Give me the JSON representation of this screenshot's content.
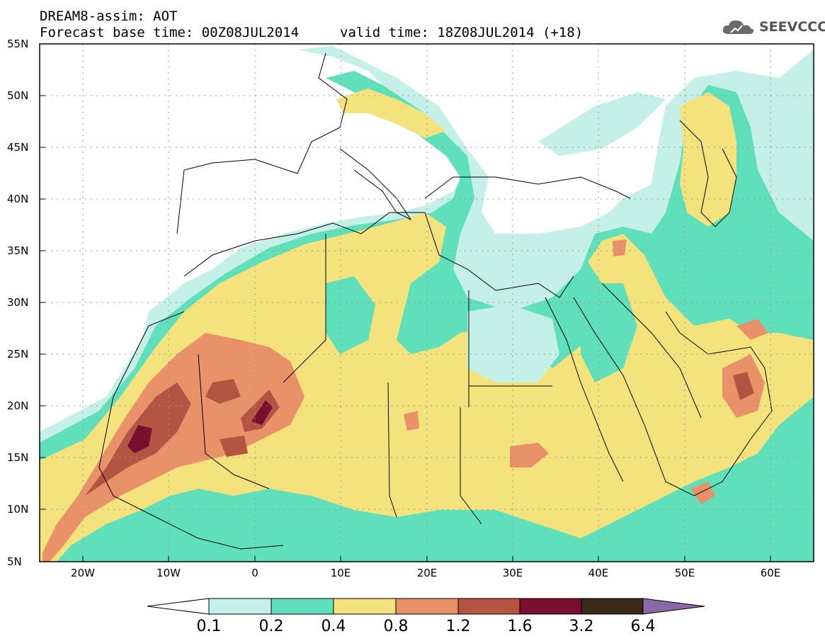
{
  "header": {
    "title": "DREAM8-assim: AOT",
    "base_time": "Forecast base time: 00Z08JUL2014",
    "valid_time": "valid time: 18Z08JUL2014 (+18)",
    "logo_text": "SEEVCCC"
  },
  "axes": {
    "lat_labels": [
      "55N",
      "50N",
      "45N",
      "40N",
      "35N",
      "30N",
      "25N",
      "20N",
      "15N",
      "10N",
      "5N"
    ],
    "lon_labels": [
      "20W",
      "10W",
      "0",
      "10E",
      "20E",
      "30E",
      "40E",
      "50E",
      "60E"
    ]
  },
  "colorbar": {
    "labels": [
      "0.1",
      "0.2",
      "0.4",
      "0.8",
      "1.2",
      "1.6",
      "3.2",
      "6.4"
    ],
    "colors": [
      "#ffffff",
      "#c4f0e8",
      "#5fe0bb",
      "#f4e37c",
      "#e99169",
      "#b35542",
      "#7a0e2f",
      "#3a2a1a",
      "#8a69a8"
    ]
  },
  "colors": {
    "aot_0_1": "#c4f0e8",
    "aot_0_2": "#5fe0bb",
    "aot_0_4": "#f4e37c",
    "aot_0_8": "#e99169",
    "aot_1_2": "#b35542",
    "aot_1_6": "#7a0e2f"
  }
}
